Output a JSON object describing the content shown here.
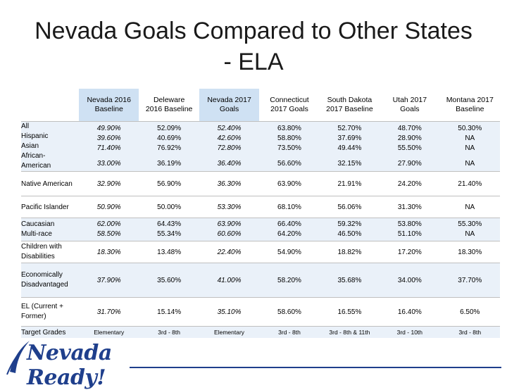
{
  "slide": {
    "title": "Nevada Goals Compared to Other States - ELA"
  },
  "table": {
    "columns": [
      {
        "label": "Nevada 2016 Baseline",
        "line1": "Nevada 2016",
        "line2": "Baseline",
        "highlight": true
      },
      {
        "label": "Deleware 2016 Baseline",
        "line1": "Deleware",
        "line2": "2016 Baseline",
        "highlight": false
      },
      {
        "label": "Nevada 2017 Goals",
        "line1": "Nevada 2017",
        "line2": "Goals",
        "highlight": true
      },
      {
        "label": "Connecticut 2017 Goals",
        "line1": "Connecticut",
        "line2": "2017 Goals",
        "highlight": false
      },
      {
        "label": "South Dakota 2017 Baseline",
        "line1": "South Dakota",
        "line2": "2017  Baseline",
        "highlight": false
      },
      {
        "label": "Utah 2017 Goals",
        "line1": "Utah 2017",
        "line2": "Goals",
        "highlight": false
      },
      {
        "label": "Montana 2017 Baseline",
        "line1": "Montana 2017",
        "line2": "Baseline",
        "highlight": false
      }
    ],
    "rows": [
      {
        "labels": [
          "All",
          "Hispanic",
          "Asian",
          "African-",
          "American"
        ],
        "cells": [
          [
            "49.90%",
            "39.60%",
            "71.40%",
            "",
            "33.00%"
          ],
          [
            "52.09%",
            "40.69%",
            "76.92%",
            "",
            "36.19%"
          ],
          [
            "52.40%",
            "42.60%",
            "72.80%",
            "",
            "36.40%"
          ],
          [
            "63.80%",
            "58.80%",
            "73.50%",
            "",
            "56.60%"
          ],
          [
            "52.70%",
            "37.69%",
            "49.44%",
            "",
            "32.15%"
          ],
          [
            "48.70%",
            "28.90%",
            "55.50%",
            "",
            "27.90%"
          ],
          [
            "50.30%",
            "NA",
            "NA",
            "",
            "NA"
          ]
        ]
      },
      {
        "labels": [
          "Native American"
        ],
        "cells": [
          [
            "32.90%"
          ],
          [
            "56.90%"
          ],
          [
            "36.30%"
          ],
          [
            "63.90%"
          ],
          [
            "21.91%"
          ],
          [
            "24.20%"
          ],
          [
            "21.40%"
          ]
        ]
      },
      {
        "labels": [
          "Pacific Islander"
        ],
        "cells": [
          [
            "50.90%"
          ],
          [
            "50.00%"
          ],
          [
            "53.30%"
          ],
          [
            "68.10%"
          ],
          [
            "56.06%"
          ],
          [
            "31.30%"
          ],
          [
            "NA"
          ]
        ]
      },
      {
        "labels": [
          "Caucasian",
          "Multi-race"
        ],
        "cells": [
          [
            "62.00%",
            "58.50%"
          ],
          [
            "64.43%",
            "55.34%"
          ],
          [
            "63.90%",
            "60.60%"
          ],
          [
            "66.40%",
            "64.20%"
          ],
          [
            "59.32%",
            "46.50%"
          ],
          [
            "53.80%",
            "51.10%"
          ],
          [
            "55.30%",
            "NA"
          ]
        ]
      },
      {
        "labels": [
          "Children with",
          "Disabilities"
        ],
        "cells": [
          [
            "18.30%"
          ],
          [
            "13.48%"
          ],
          [
            "22.40%"
          ],
          [
            "54.90%"
          ],
          [
            "18.82%"
          ],
          [
            "17.20%"
          ],
          [
            "18.30%"
          ]
        ]
      },
      {
        "labels": [
          "Economically",
          "Disadvantaged"
        ],
        "cells": [
          [
            "37.90%"
          ],
          [
            "35.60%"
          ],
          [
            "41.00%"
          ],
          [
            "58.20%"
          ],
          [
            "35.68%"
          ],
          [
            "34.00%"
          ],
          [
            "37.70%"
          ]
        ]
      },
      {
        "labels": [
          "EL (Current +",
          "Former)"
        ],
        "cells": [
          [
            "31.70%"
          ],
          [
            "15.14%"
          ],
          [
            "35.10%"
          ],
          [
            "58.60%"
          ],
          [
            "16.55%"
          ],
          [
            "16.40%"
          ],
          [
            "6.50%"
          ]
        ]
      },
      {
        "labels": [
          "Target Grades"
        ],
        "cells": [
          [
            "Elementary"
          ],
          [
            "3rd - 8th"
          ],
          [
            "Elementary"
          ],
          [
            "3rd - 8th"
          ],
          [
            "3rd - 8th & 11th"
          ],
          [
            "3rd - 10th"
          ],
          [
            "3rd - 8th"
          ]
        ]
      }
    ]
  },
  "logo": {
    "text": "Nevada Ready!",
    "color": "#1f3f8c"
  }
}
